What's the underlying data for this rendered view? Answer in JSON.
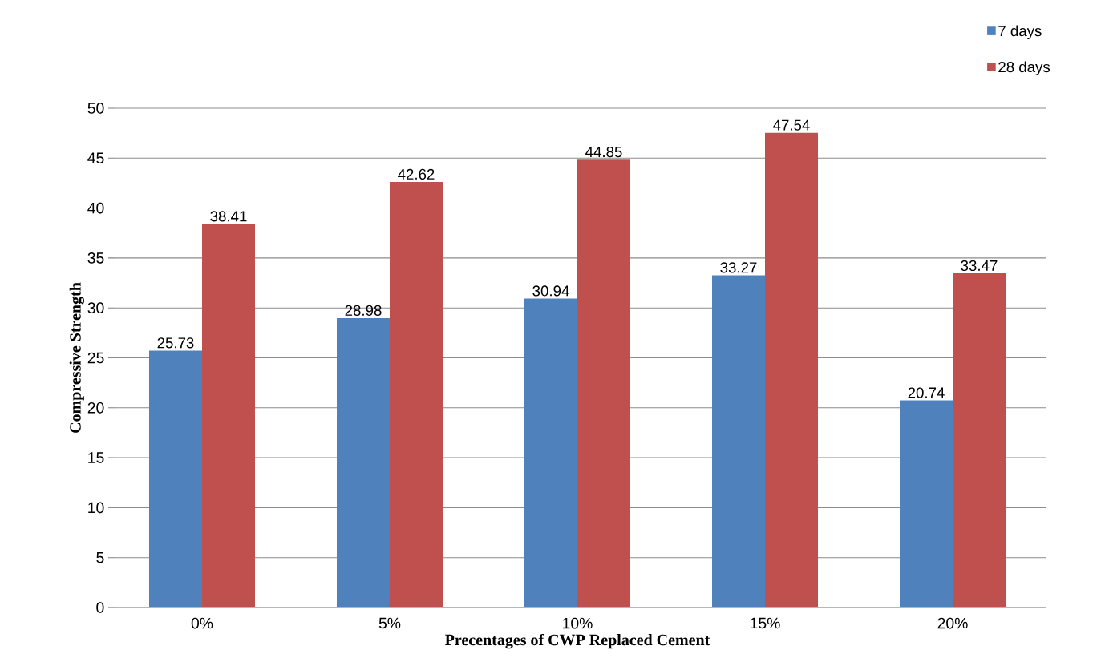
{
  "chart_data": {
    "type": "bar",
    "xlabel": "Precentages of CWP Replaced Cement",
    "ylabel": "Compressive Strength",
    "categories": [
      "0%",
      "5%",
      "10%",
      "15%",
      "20%"
    ],
    "series": [
      {
        "name": "7 days",
        "color": "#4f81bd",
        "values": [
          25.73,
          28.98,
          30.94,
          33.27,
          20.74
        ]
      },
      {
        "name": "28 days",
        "color": "#c0504d",
        "values": [
          38.41,
          42.62,
          44.85,
          47.54,
          33.47
        ]
      }
    ],
    "ylim": [
      0,
      50
    ],
    "yticks": [
      0,
      5,
      10,
      15,
      20,
      25,
      30,
      35,
      40,
      45,
      50
    ],
    "grid": "y",
    "legend": "top right",
    "data_labels": true
  }
}
